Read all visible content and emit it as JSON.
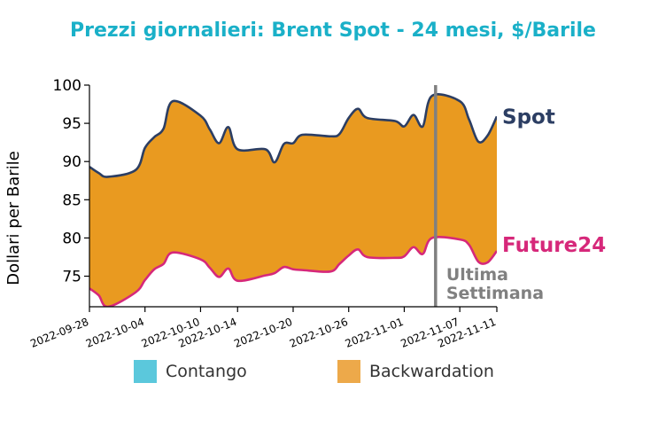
{
  "chart_data": {
    "type": "area",
    "title": "Prezzi giornalieri: Brent Spot - 24 mesi, $/Barile",
    "xlabel": "",
    "ylabel": "Dollari per Barile",
    "ylim": [
      71,
      100
    ],
    "yticks": [
      75,
      80,
      85,
      90,
      95,
      100
    ],
    "x_tick_labels": [
      "2022-09-28",
      "2022-10-04",
      "2022-10-10",
      "2022-10-14",
      "2022-10-20",
      "2022-10-26",
      "2022-11-01",
      "2022-11-07",
      "2022-11-11"
    ],
    "grid": false,
    "series": [
      {
        "name": "Spot",
        "color": "#2c3e63",
        "x": [
          "2022-09-28",
          "2022-09-29",
          "2022-09-30",
          "2022-10-03",
          "2022-10-04",
          "2022-10-05",
          "2022-10-06",
          "2022-10-07",
          "2022-10-10",
          "2022-10-11",
          "2022-10-12",
          "2022-10-13",
          "2022-10-14",
          "2022-10-17",
          "2022-10-18",
          "2022-10-19",
          "2022-10-20",
          "2022-10-21",
          "2022-10-24",
          "2022-10-25",
          "2022-10-26",
          "2022-10-27",
          "2022-10-28",
          "2022-10-31",
          "2022-11-01",
          "2022-11-02",
          "2022-11-03",
          "2022-11-04",
          "2022-11-07",
          "2022-11-08",
          "2022-11-09",
          "2022-11-10",
          "2022-11-11"
        ],
        "values": [
          89.3,
          88.5,
          88.0,
          88.9,
          91.8,
          93.2,
          94.3,
          97.9,
          96.0,
          94.2,
          92.4,
          94.5,
          91.6,
          91.6,
          89.9,
          92.3,
          92.4,
          93.5,
          93.3,
          93.6,
          95.7,
          96.9,
          95.7,
          95.3,
          94.6,
          96.1,
          94.6,
          98.6,
          97.9,
          95.5,
          92.6,
          93.4,
          95.9
        ]
      },
      {
        "name": "Future24",
        "color": "#d6287a",
        "x": [
          "2022-09-28",
          "2022-09-29",
          "2022-09-30",
          "2022-10-03",
          "2022-10-04",
          "2022-10-05",
          "2022-10-06",
          "2022-10-07",
          "2022-10-10",
          "2022-10-11",
          "2022-10-12",
          "2022-10-13",
          "2022-10-14",
          "2022-10-17",
          "2022-10-18",
          "2022-10-19",
          "2022-10-20",
          "2022-10-21",
          "2022-10-24",
          "2022-10-25",
          "2022-10-26",
          "2022-10-27",
          "2022-10-28",
          "2022-10-31",
          "2022-11-01",
          "2022-11-02",
          "2022-11-03",
          "2022-11-04",
          "2022-11-07",
          "2022-11-08",
          "2022-11-09",
          "2022-11-10",
          "2022-11-11"
        ],
        "values": [
          73.4,
          72.5,
          71.0,
          72.9,
          74.5,
          75.9,
          76.6,
          78.1,
          77.2,
          76.1,
          74.9,
          76.0,
          74.4,
          75.1,
          75.4,
          76.2,
          75.9,
          75.8,
          75.6,
          76.6,
          77.7,
          78.5,
          77.5,
          77.4,
          77.6,
          78.8,
          77.9,
          80.0,
          79.8,
          79.1,
          76.9,
          76.8,
          78.3
        ]
      }
    ],
    "fill_between": {
      "color": "#e99a20"
    },
    "annotation": {
      "text": [
        "Ultima",
        "Settimana"
      ],
      "x": "2022-11-04",
      "color": "#808080"
    },
    "legend": [
      {
        "label": "Contango",
        "color": "#5bc8dc"
      },
      {
        "label": "Backwardation",
        "color": "#eda94a"
      }
    ]
  }
}
